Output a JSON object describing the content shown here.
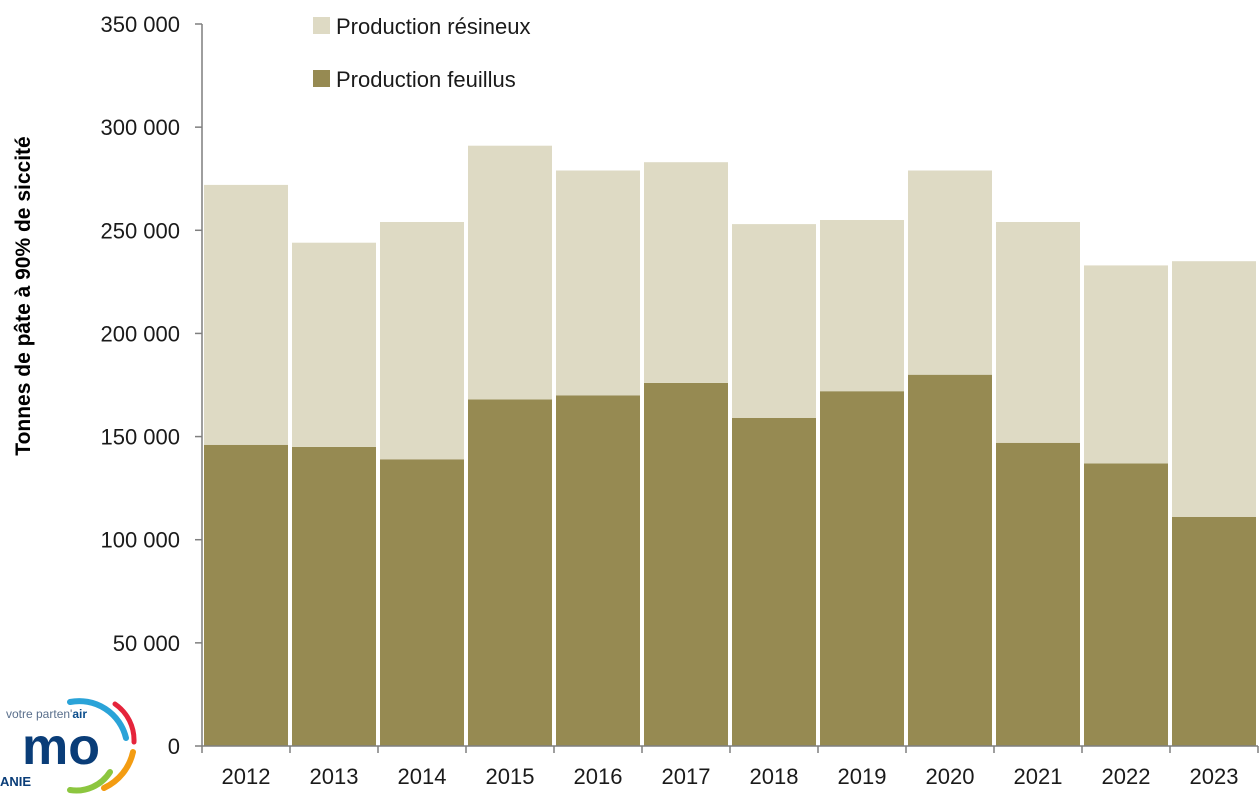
{
  "chart_data": {
    "type": "bar",
    "stacked": true,
    "categories": [
      "2012",
      "2013",
      "2014",
      "2015",
      "2016",
      "2017",
      "2018",
      "2019",
      "2020",
      "2021",
      "2022",
      "2023"
    ],
    "series": [
      {
        "name": "Production feuillus",
        "color": "#968a52",
        "values": [
          146000,
          145000,
          139000,
          168000,
          170000,
          176000,
          159000,
          172000,
          180000,
          147000,
          137000,
          111000
        ]
      },
      {
        "name": "Production résineux",
        "color": "#dedac4",
        "values": [
          126000,
          99000,
          115000,
          123000,
          109000,
          107000,
          94000,
          83000,
          99000,
          107000,
          96000,
          124000
        ]
      }
    ],
    "ylabel": "Tonnes de pâte à 90% de siccité",
    "ylim": [
      0,
      350000
    ],
    "yticks": [
      0,
      50000,
      100000,
      150000,
      200000,
      250000,
      300000,
      350000
    ],
    "ytick_labels": [
      "0",
      "50 000",
      "100 000",
      "150 000",
      "200 000",
      "250 000",
      "300 000",
      "350 000"
    ],
    "grid": false,
    "legend_position": "top-left"
  },
  "logo": {
    "tagline_prefix": "votre parten'",
    "tagline_suffix": "air",
    "name": "mo",
    "region": "ANIE"
  }
}
